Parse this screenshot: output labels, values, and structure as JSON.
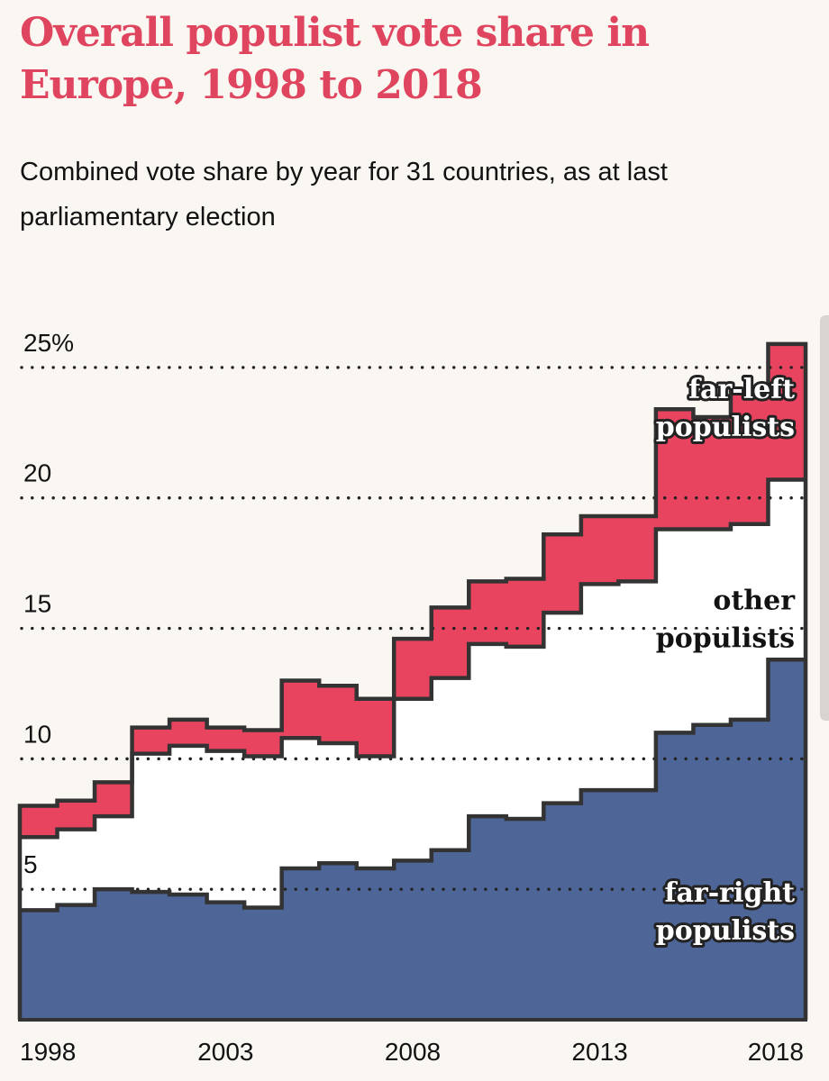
{
  "header": {
    "title": "Overall populist vote share in Europe, 1998 to 2018",
    "subtitle": "Combined vote share by year for 31 countries, as at last parliamentary election"
  },
  "colors": {
    "far_right": "#4e6597",
    "other": "#ffffff",
    "far_left": "#e8445f",
    "title": "#e0455f",
    "background": "#faf6f1"
  },
  "chart_data": {
    "type": "area",
    "stacked": true,
    "step": true,
    "title": "Overall populist vote share in Europe, 1998 to 2018",
    "subtitle": "Combined vote share by year for 31 countries, as at last parliamentary election",
    "xlabel": "",
    "ylabel": "",
    "x": [
      1998,
      1999,
      2000,
      2001,
      2002,
      2003,
      2004,
      2005,
      2006,
      2007,
      2008,
      2009,
      2010,
      2011,
      2012,
      2013,
      2014,
      2015,
      2016,
      2017,
      2018
    ],
    "x_tick_labels": [
      "1998",
      "2003",
      "2008",
      "2013",
      "2018"
    ],
    "y_ticks": [
      5,
      10,
      15,
      20,
      25
    ],
    "y_tick_labels": [
      "5",
      "10",
      "15",
      "20",
      "25%"
    ],
    "ylim": [
      0,
      27
    ],
    "grid": "dotted horizontal",
    "series": [
      {
        "name": "far-right populists",
        "label_lines": [
          "far-right",
          "populists"
        ],
        "values": [
          4.2,
          4.4,
          5.0,
          4.9,
          4.8,
          4.5,
          4.3,
          5.8,
          6.0,
          5.8,
          6.1,
          6.5,
          7.8,
          7.7,
          8.3,
          8.8,
          8.8,
          11.0,
          11.3,
          11.5,
          13.8
        ]
      },
      {
        "name": "other populists",
        "label_lines": [
          "other",
          "populists"
        ],
        "values": [
          2.8,
          2.9,
          2.8,
          5.3,
          5.7,
          5.8,
          5.8,
          5.0,
          4.6,
          4.3,
          6.2,
          6.6,
          6.6,
          6.6,
          7.3,
          7.9,
          8.0,
          7.8,
          7.5,
          7.5,
          6.9
        ]
      },
      {
        "name": "far-left populists",
        "label_lines": [
          "far-left",
          "populists"
        ],
        "values": [
          1.2,
          1.1,
          1.3,
          1.0,
          1.0,
          0.9,
          1.0,
          2.2,
          2.2,
          2.2,
          2.3,
          2.7,
          2.4,
          2.6,
          3.0,
          2.6,
          2.5,
          4.6,
          4.3,
          5.1,
          5.2
        ]
      }
    ]
  }
}
